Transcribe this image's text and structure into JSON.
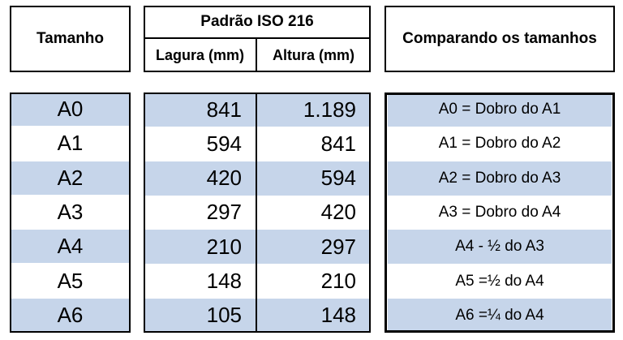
{
  "header": {
    "size": "Tamanho",
    "standard": "Padrão ISO 216",
    "width": "Lagura (mm)",
    "height": "Altura (mm)",
    "compare": "Comparando os tamanhos"
  },
  "table": {
    "rows": [
      [
        "A0",
        "841",
        "1.189",
        "A0 = Dobro do A1"
      ],
      [
        "A1",
        "594",
        "841",
        "A1 = Dobro do A2"
      ],
      [
        "A2",
        "420",
        "594",
        "A2 = Dobro do A3"
      ],
      [
        "A3",
        "297",
        "420",
        "A3 = Dobro do A4"
      ],
      [
        "A4",
        "210",
        "297",
        "A4 - ½ do A3"
      ],
      [
        "A5",
        "148",
        "210",
        "A5 =½ do A4"
      ],
      [
        "A6",
        "105",
        "148",
        "A6 =¼ do A4"
      ]
    ]
  }
}
